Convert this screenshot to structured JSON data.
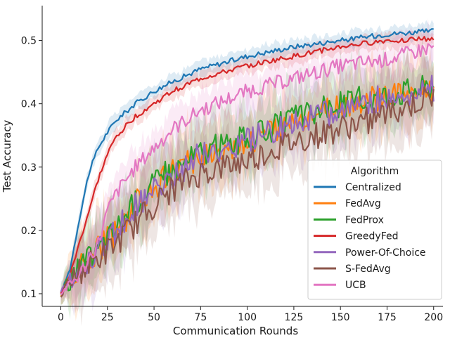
{
  "chart_data": {
    "type": "line",
    "title": "",
    "xlabel": "Communication Rounds",
    "ylabel": "Test Accuracy",
    "xlim": [
      -10,
      205
    ],
    "ylim": [
      0.08,
      0.555
    ],
    "xticks": [
      0,
      25,
      50,
      75,
      100,
      125,
      150,
      175,
      200
    ],
    "yticks": [
      0.1,
      0.2,
      0.3,
      0.4,
      0.5
    ],
    "grid": false,
    "legend": {
      "title": "Algorithm",
      "placement": "lower-right"
    },
    "shaded_bands": true,
    "series": [
      {
        "name": "Centralized",
        "color": "#1f77b4",
        "x": [
          0,
          5,
          10,
          15,
          20,
          25,
          30,
          40,
          50,
          60,
          75,
          100,
          125,
          150,
          175,
          200
        ],
        "y": [
          0.1,
          0.14,
          0.22,
          0.29,
          0.33,
          0.355,
          0.375,
          0.4,
          0.42,
          0.435,
          0.455,
          0.475,
          0.49,
          0.5,
          0.51,
          0.515
        ]
      },
      {
        "name": "FedAvg",
        "color": "#ff7f0e",
        "x": [
          0,
          10,
          20,
          30,
          40,
          50,
          60,
          75,
          100,
          125,
          150,
          175,
          200
        ],
        "y": [
          0.1,
          0.14,
          0.17,
          0.2,
          0.24,
          0.27,
          0.29,
          0.32,
          0.34,
          0.37,
          0.395,
          0.41,
          0.42
        ]
      },
      {
        "name": "FedProx",
        "color": "#2ca02c",
        "x": [
          0,
          10,
          20,
          30,
          40,
          50,
          60,
          75,
          100,
          125,
          150,
          175,
          200
        ],
        "y": [
          0.1,
          0.14,
          0.17,
          0.205,
          0.245,
          0.275,
          0.295,
          0.325,
          0.345,
          0.375,
          0.4,
          0.415,
          0.43
        ]
      },
      {
        "name": "GreedyFed",
        "color": "#d62728",
        "x": [
          0,
          5,
          10,
          15,
          20,
          25,
          30,
          40,
          50,
          60,
          75,
          100,
          125,
          150,
          175,
          200
        ],
        "y": [
          0.1,
          0.13,
          0.18,
          0.23,
          0.28,
          0.32,
          0.35,
          0.38,
          0.4,
          0.42,
          0.44,
          0.46,
          0.475,
          0.49,
          0.5,
          0.503
        ]
      },
      {
        "name": "Power-Of-Choice",
        "color": "#9467bd",
        "x": [
          0,
          10,
          20,
          30,
          40,
          50,
          60,
          75,
          100,
          125,
          150,
          175,
          200
        ],
        "y": [
          0.1,
          0.14,
          0.165,
          0.2,
          0.24,
          0.265,
          0.285,
          0.32,
          0.34,
          0.37,
          0.39,
          0.41,
          0.425
        ]
      },
      {
        "name": "S-FedAvg",
        "color": "#8c564b",
        "x": [
          0,
          10,
          20,
          30,
          40,
          50,
          60,
          75,
          100,
          125,
          150,
          175,
          200
        ],
        "y": [
          0.1,
          0.135,
          0.155,
          0.18,
          0.21,
          0.24,
          0.265,
          0.29,
          0.31,
          0.34,
          0.36,
          0.385,
          0.41
        ]
      },
      {
        "name": "UCB",
        "color": "#e377c2",
        "x": [
          0,
          10,
          20,
          25,
          30,
          40,
          50,
          60,
          75,
          100,
          125,
          150,
          175,
          200
        ],
        "y": [
          0.1,
          0.13,
          0.18,
          0.23,
          0.26,
          0.3,
          0.33,
          0.36,
          0.39,
          0.42,
          0.44,
          0.46,
          0.47,
          0.49
        ]
      }
    ]
  }
}
